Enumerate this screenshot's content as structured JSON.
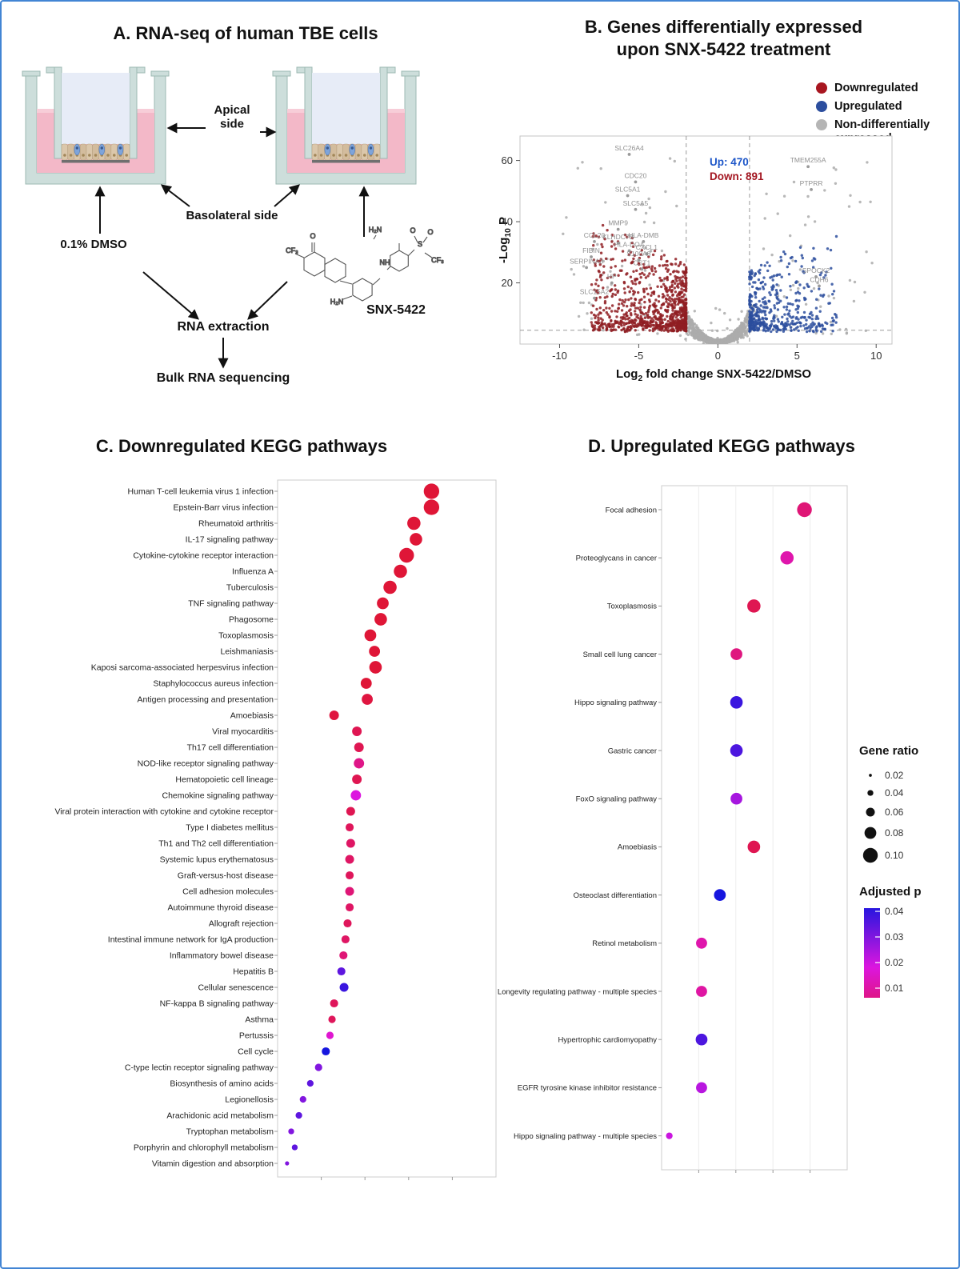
{
  "figure": {
    "border_color": "#4285d4"
  },
  "panelA": {
    "title": "A. RNA-seq of human TBE cells",
    "apical_label": "Apical\nside",
    "basolateral_label": "Basolateral side",
    "dmso_label": "0.1% DMSO",
    "compound_label": "SNX-5422",
    "rna_extraction_label": "RNA extraction",
    "sequencing_label": "Bulk RNA sequencing",
    "molecule_atoms": [
      "O",
      "CF₃",
      "H₂N",
      "NH",
      "H₂N",
      "O",
      "O",
      "S",
      "CF₃"
    ]
  },
  "panelB": {
    "title": "B. Genes differentially expressed\nupon SNX-5422 treatment",
    "legend": [
      {
        "label": "Downregulated",
        "color": "#a81620"
      },
      {
        "label": "Upregulated",
        "color": "#2c4e9e"
      },
      {
        "label": "Non-differentially expressed",
        "color": "#b5b5b5"
      }
    ],
    "up_annotation": "Up: 470",
    "down_annotation": "Down: 891",
    "xlabel": {
      "pre": "Log",
      "sub": "2",
      "post": " fold change SNX-5422/DMSO"
    },
    "ylabel": {
      "pre": "-Log",
      "sub": "10",
      "post": " P"
    }
  },
  "panelC": {
    "title": "C.  Downregulated KEGG pathways"
  },
  "panelD": {
    "title": "D. Upregulated KEGG pathways"
  },
  "chart_data": [
    {
      "id": "volcano",
      "type": "scatter",
      "title": "Genes differentially expressed upon SNX-5422 treatment",
      "xlabel": "Log2 fold change SNX-5422/DMSO",
      "ylabel": "-Log10 P",
      "xlim": [
        -12.5,
        11
      ],
      "ylim": [
        0,
        68
      ],
      "xticks": [
        -10,
        -5,
        0,
        5,
        10
      ],
      "yticks": [
        20,
        40,
        60
      ],
      "fold_change_thresholds": [
        -2,
        2
      ],
      "pvalue_threshold_line": 4.5,
      "n_upregulated": 470,
      "n_downregulated": 891,
      "point_colors": {
        "down": "#8f1d22",
        "up": "#2c4e9e",
        "ns": "#ababab"
      },
      "labeled_genes": [
        {
          "name": "SLC26A4",
          "x": -5.6,
          "y": 62
        },
        {
          "name": "CDC20",
          "x": -5.2,
          "y": 53
        },
        {
          "name": "SLC5A1",
          "x": -5.7,
          "y": 48.5
        },
        {
          "name": "SLC5A5",
          "x": -5.2,
          "y": 44
        },
        {
          "name": "MMP9",
          "x": -6.3,
          "y": 37.5
        },
        {
          "name": "CCL20",
          "x": -7.8,
          "y": 33.5
        },
        {
          "name": "KLHDC7B",
          "x": -6.3,
          "y": 33
        },
        {
          "name": "HLA-DMB",
          "x": -4.7,
          "y": 33.5
        },
        {
          "name": "HLA-DOA",
          "x": -5.6,
          "y": 30.5
        },
        {
          "name": "CXCL1",
          "x": -4.5,
          "y": 29.5
        },
        {
          "name": "FIBIN",
          "x": -8.0,
          "y": 28.5
        },
        {
          "name": "S100A8",
          "x": -5.0,
          "y": 27.5
        },
        {
          "name": "SERPINA3",
          "x": -8.3,
          "y": 25
        },
        {
          "name": "CST1",
          "x": -4.8,
          "y": 24.5
        },
        {
          "name": "HP",
          "x": -6.7,
          "y": 20
        },
        {
          "name": "SLC15A2",
          "x": -7.8,
          "y": 15
        },
        {
          "name": "TMEM255A",
          "x": 5.7,
          "y": 58
        },
        {
          "name": "PTPRR",
          "x": 5.9,
          "y": 50.5
        },
        {
          "name": "SPOCK2",
          "x": 6.2,
          "y": 22
        },
        {
          "name": "CDH6",
          "x": 6.4,
          "y": 19
        }
      ],
      "simulation": {
        "seed": 12345,
        "n_down": 891,
        "n_up": 470,
        "n_ns_fan": 1350,
        "n_ns_sparse": 150
      }
    },
    {
      "id": "kegg_down",
      "type": "dotplot",
      "title": "Downregulated KEGG pathways",
      "x_axis_note": "enrichment axis (tick labels not legible); x given as 0-1 fraction of axis",
      "size_encoding": "Gene ratio",
      "color_encoding": "Adjusted p",
      "rows": [
        {
          "pathway": "Human T-cell leukemia virus 1 infection",
          "x": 0.735,
          "gene_ratio": 0.105,
          "adjusted_p": 0.001
        },
        {
          "pathway": "Epstein-Barr virus infection",
          "x": 0.735,
          "gene_ratio": 0.105,
          "adjusted_p": 0.001
        },
        {
          "pathway": "Rheumatoid arthritis",
          "x": 0.65,
          "gene_ratio": 0.09,
          "adjusted_p": 0.001
        },
        {
          "pathway": "IL-17 signaling pathway",
          "x": 0.66,
          "gene_ratio": 0.085,
          "adjusted_p": 0.001
        },
        {
          "pathway": "Cytokine-cytokine receptor interaction",
          "x": 0.615,
          "gene_ratio": 0.1,
          "adjusted_p": 0.001
        },
        {
          "pathway": "Influenza A",
          "x": 0.585,
          "gene_ratio": 0.09,
          "adjusted_p": 0.001
        },
        {
          "pathway": "Tuberculosis",
          "x": 0.535,
          "gene_ratio": 0.09,
          "adjusted_p": 0.001
        },
        {
          "pathway": "TNF signaling pathway",
          "x": 0.5,
          "gene_ratio": 0.08,
          "adjusted_p": 0.001
        },
        {
          "pathway": "Phagosome",
          "x": 0.49,
          "gene_ratio": 0.085,
          "adjusted_p": 0.001
        },
        {
          "pathway": "Toxoplasmosis",
          "x": 0.44,
          "gene_ratio": 0.08,
          "adjusted_p": 0.001
        },
        {
          "pathway": "Leishmaniasis",
          "x": 0.46,
          "gene_ratio": 0.075,
          "adjusted_p": 0.001
        },
        {
          "pathway": "Kaposi sarcoma-associated herpesvirus infection",
          "x": 0.465,
          "gene_ratio": 0.085,
          "adjusted_p": 0.001
        },
        {
          "pathway": "Staphylococcus aureus infection",
          "x": 0.42,
          "gene_ratio": 0.075,
          "adjusted_p": 0.001
        },
        {
          "pathway": "Antigen processing and presentation",
          "x": 0.425,
          "gene_ratio": 0.075,
          "adjusted_p": 0.002
        },
        {
          "pathway": "Amoebiasis",
          "x": 0.265,
          "gene_ratio": 0.065,
          "adjusted_p": 0.002
        },
        {
          "pathway": "Viral myocarditis",
          "x": 0.375,
          "gene_ratio": 0.065,
          "adjusted_p": 0.004
        },
        {
          "pathway": "Th17 cell differentiation",
          "x": 0.385,
          "gene_ratio": 0.065,
          "adjusted_p": 0.004
        },
        {
          "pathway": "NOD-like receptor signaling pathway",
          "x": 0.385,
          "gene_ratio": 0.07,
          "adjusted_p": 0.01
        },
        {
          "pathway": "Hematopoietic cell lineage",
          "x": 0.375,
          "gene_ratio": 0.065,
          "adjusted_p": 0.004
        },
        {
          "pathway": "Chemokine signaling pathway",
          "x": 0.37,
          "gene_ratio": 0.07,
          "adjusted_p": 0.02
        },
        {
          "pathway": "Viral protein interaction with cytokine and cytokine receptor",
          "x": 0.345,
          "gene_ratio": 0.06,
          "adjusted_p": 0.004
        },
        {
          "pathway": "Type I diabetes mellitus",
          "x": 0.34,
          "gene_ratio": 0.055,
          "adjusted_p": 0.005
        },
        {
          "pathway": "Th1 and Th2 cell differentiation",
          "x": 0.345,
          "gene_ratio": 0.06,
          "adjusted_p": 0.006
        },
        {
          "pathway": "Systemic lupus erythematosus",
          "x": 0.34,
          "gene_ratio": 0.06,
          "adjusted_p": 0.006
        },
        {
          "pathway": "Graft-versus-host disease",
          "x": 0.34,
          "gene_ratio": 0.055,
          "adjusted_p": 0.005
        },
        {
          "pathway": "Cell adhesion molecules",
          "x": 0.34,
          "gene_ratio": 0.06,
          "adjusted_p": 0.008
        },
        {
          "pathway": "Autoimmune thyroid disease",
          "x": 0.34,
          "gene_ratio": 0.055,
          "adjusted_p": 0.006
        },
        {
          "pathway": "Allograft rejection",
          "x": 0.33,
          "gene_ratio": 0.055,
          "adjusted_p": 0.005
        },
        {
          "pathway": "Intestinal immune network for IgA production",
          "x": 0.32,
          "gene_ratio": 0.055,
          "adjusted_p": 0.006
        },
        {
          "pathway": "Inflammatory bowel disease",
          "x": 0.31,
          "gene_ratio": 0.055,
          "adjusted_p": 0.008
        },
        {
          "pathway": "Hepatitis B",
          "x": 0.3,
          "gene_ratio": 0.055,
          "adjusted_p": 0.034
        },
        {
          "pathway": "Cellular senescence",
          "x": 0.313,
          "gene_ratio": 0.06,
          "adjusted_p": 0.038
        },
        {
          "pathway": "NF-kappa B signaling pathway",
          "x": 0.265,
          "gene_ratio": 0.055,
          "adjusted_p": 0.005
        },
        {
          "pathway": "Asthma",
          "x": 0.255,
          "gene_ratio": 0.05,
          "adjusted_p": 0.005
        },
        {
          "pathway": "Pertussis",
          "x": 0.245,
          "gene_ratio": 0.05,
          "adjusted_p": 0.018
        },
        {
          "pathway": "Cell cycle",
          "x": 0.225,
          "gene_ratio": 0.055,
          "adjusted_p": 0.042
        },
        {
          "pathway": "C-type lectin receptor signaling pathway",
          "x": 0.19,
          "gene_ratio": 0.05,
          "adjusted_p": 0.03
        },
        {
          "pathway": "Biosynthesis of amino acids",
          "x": 0.15,
          "gene_ratio": 0.045,
          "adjusted_p": 0.034
        },
        {
          "pathway": "Legionellosis",
          "x": 0.115,
          "gene_ratio": 0.045,
          "adjusted_p": 0.03
        },
        {
          "pathway": "Arachidonic acid metabolism",
          "x": 0.095,
          "gene_ratio": 0.045,
          "adjusted_p": 0.034
        },
        {
          "pathway": "Tryptophan metabolism",
          "x": 0.058,
          "gene_ratio": 0.04,
          "adjusted_p": 0.03
        },
        {
          "pathway": "Porphyrin and chlorophyll metabolism",
          "x": 0.075,
          "gene_ratio": 0.04,
          "adjusted_p": 0.034
        },
        {
          "pathway": "Vitamin digestion and absorption",
          "x": 0.038,
          "gene_ratio": 0.028,
          "adjusted_p": 0.03
        }
      ]
    },
    {
      "id": "kegg_up",
      "type": "dotplot",
      "title": "Upregulated KEGG pathways",
      "x_axis_note": "enrichment axis (tick labels not legible); x given as 0-1 fraction of axis",
      "size_encoding": "Gene ratio",
      "color_encoding": "Adjusted p",
      "rows": [
        {
          "pathway": "Focal adhesion",
          "x": 0.81,
          "gene_ratio": 0.1,
          "adjusted_p": 0.008
        },
        {
          "pathway": "Proteoglycans in cancer",
          "x": 0.71,
          "gene_ratio": 0.09,
          "adjusted_p": 0.014
        },
        {
          "pathway": "Toxoplasmosis",
          "x": 0.52,
          "gene_ratio": 0.09,
          "adjusted_p": 0.004
        },
        {
          "pathway": "Small cell lung cancer",
          "x": 0.42,
          "gene_ratio": 0.08,
          "adjusted_p": 0.009
        },
        {
          "pathway": "Hippo signaling pathway",
          "x": 0.42,
          "gene_ratio": 0.085,
          "adjusted_p": 0.038
        },
        {
          "pathway": "Gastric cancer",
          "x": 0.42,
          "gene_ratio": 0.085,
          "adjusted_p": 0.036
        },
        {
          "pathway": "FoxO signaling pathway",
          "x": 0.42,
          "gene_ratio": 0.08,
          "adjusted_p": 0.026
        },
        {
          "pathway": "Amoebiasis",
          "x": 0.52,
          "gene_ratio": 0.085,
          "adjusted_p": 0.004
        },
        {
          "pathway": "Osteoclast differentiation",
          "x": 0.325,
          "gene_ratio": 0.08,
          "adjusted_p": 0.042
        },
        {
          "pathway": "Retinol metabolism",
          "x": 0.22,
          "gene_ratio": 0.075,
          "adjusted_p": 0.014
        },
        {
          "pathway": "Longevity regulating pathway - multiple species",
          "x": 0.22,
          "gene_ratio": 0.075,
          "adjusted_p": 0.013
        },
        {
          "pathway": "Hypertrophic cardiomyopathy",
          "x": 0.22,
          "gene_ratio": 0.08,
          "adjusted_p": 0.036
        },
        {
          "pathway": "EGFR tyrosine kinase inhibitor resistance",
          "x": 0.22,
          "gene_ratio": 0.075,
          "adjusted_p": 0.024
        },
        {
          "pathway": "Hippo signaling pathway - multiple species",
          "x": 0.035,
          "gene_ratio": 0.045,
          "adjusted_p": 0.022
        }
      ],
      "legend": {
        "size_title": "Gene ratio",
        "sizes": [
          {
            "label": "0.02",
            "v": 0.02
          },
          {
            "label": "0.04",
            "v": 0.04
          },
          {
            "label": "0.06",
            "v": 0.06
          },
          {
            "label": "0.08",
            "v": 0.08
          },
          {
            "label": "0.10",
            "v": 0.1
          }
        ],
        "color_title": "Adjusted p",
        "p_ticks": [
          {
            "label": "0.04",
            "v": 0.04
          },
          {
            "label": "0.03",
            "v": 0.03
          },
          {
            "label": "0.02",
            "v": 0.02
          },
          {
            "label": "0.01",
            "v": 0.01
          }
        ]
      }
    }
  ]
}
